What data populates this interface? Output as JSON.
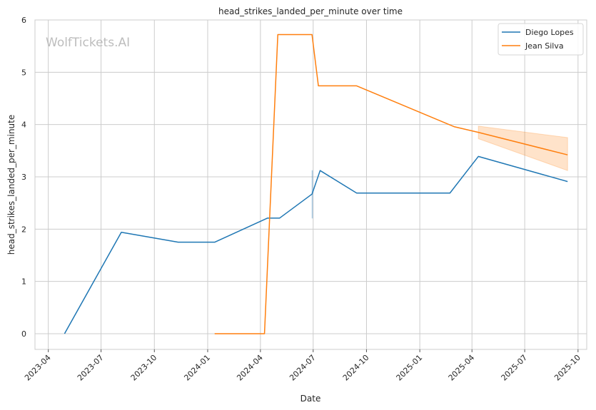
{
  "chart_data": {
    "type": "line",
    "title": "head_strikes_landed_per_minute over time",
    "xlabel": "Date",
    "ylabel": "head_strikes_landed_per_minute",
    "watermark": "WolfTickets.AI",
    "xlim": [
      "2023-03-09",
      "2025-10-16"
    ],
    "ylim": [
      -0.3,
      6
    ],
    "grid": true,
    "legend_position": "top-right",
    "x_ticks": [
      "2023-04",
      "2023-07",
      "2023-10",
      "2024-01",
      "2024-04",
      "2024-07",
      "2024-10",
      "2025-01",
      "2025-04",
      "2025-07",
      "2025-10"
    ],
    "y_ticks": [
      "0",
      "1",
      "2",
      "3",
      "4",
      "5",
      "6"
    ],
    "series": [
      {
        "name": "Diego Lopes",
        "color": "#1f77b4",
        "points": [
          {
            "x": "2023-04-29",
            "y": 0.0
          },
          {
            "x": "2023-08-05",
            "y": 1.94
          },
          {
            "x": "2023-11-11",
            "y": 1.75
          },
          {
            "x": "2024-01-13",
            "y": 1.75
          },
          {
            "x": "2024-04-13",
            "y": 2.21
          },
          {
            "x": "2024-05-04",
            "y": 2.21
          },
          {
            "x": "2024-06-29",
            "y": 2.67
          },
          {
            "x": "2024-07-13",
            "y": 3.12
          },
          {
            "x": "2024-09-14",
            "y": 2.69
          },
          {
            "x": "2025-02-22",
            "y": 2.69
          },
          {
            "x": "2025-04-12",
            "y": 3.39
          },
          {
            "x": "2025-09-13",
            "y": 2.91
          }
        ],
        "band": [
          {
            "x": "2024-06-29",
            "lower": 2.21,
            "upper": 3.12
          },
          {
            "x": "2024-06-30",
            "lower": 2.21,
            "upper": 3.12
          }
        ]
      },
      {
        "name": "Jean Silva",
        "color": "#ff7f0e",
        "points": [
          {
            "x": "2024-01-13",
            "y": 0.0
          },
          {
            "x": "2024-04-08",
            "y": 0.0
          },
          {
            "x": "2024-05-01",
            "y": 5.72
          },
          {
            "x": "2024-06-29",
            "y": 5.72
          },
          {
            "x": "2024-07-10",
            "y": 4.74
          },
          {
            "x": "2024-09-14",
            "y": 4.74
          },
          {
            "x": "2025-03-01",
            "y": 3.96
          },
          {
            "x": "2025-04-12",
            "y": 3.85
          },
          {
            "x": "2025-09-13",
            "y": 3.42
          }
        ],
        "band": [
          {
            "x": "2025-04-12",
            "lower": 3.73,
            "upper": 3.97
          },
          {
            "x": "2025-09-13",
            "lower": 3.12,
            "upper": 3.75
          }
        ]
      }
    ]
  }
}
